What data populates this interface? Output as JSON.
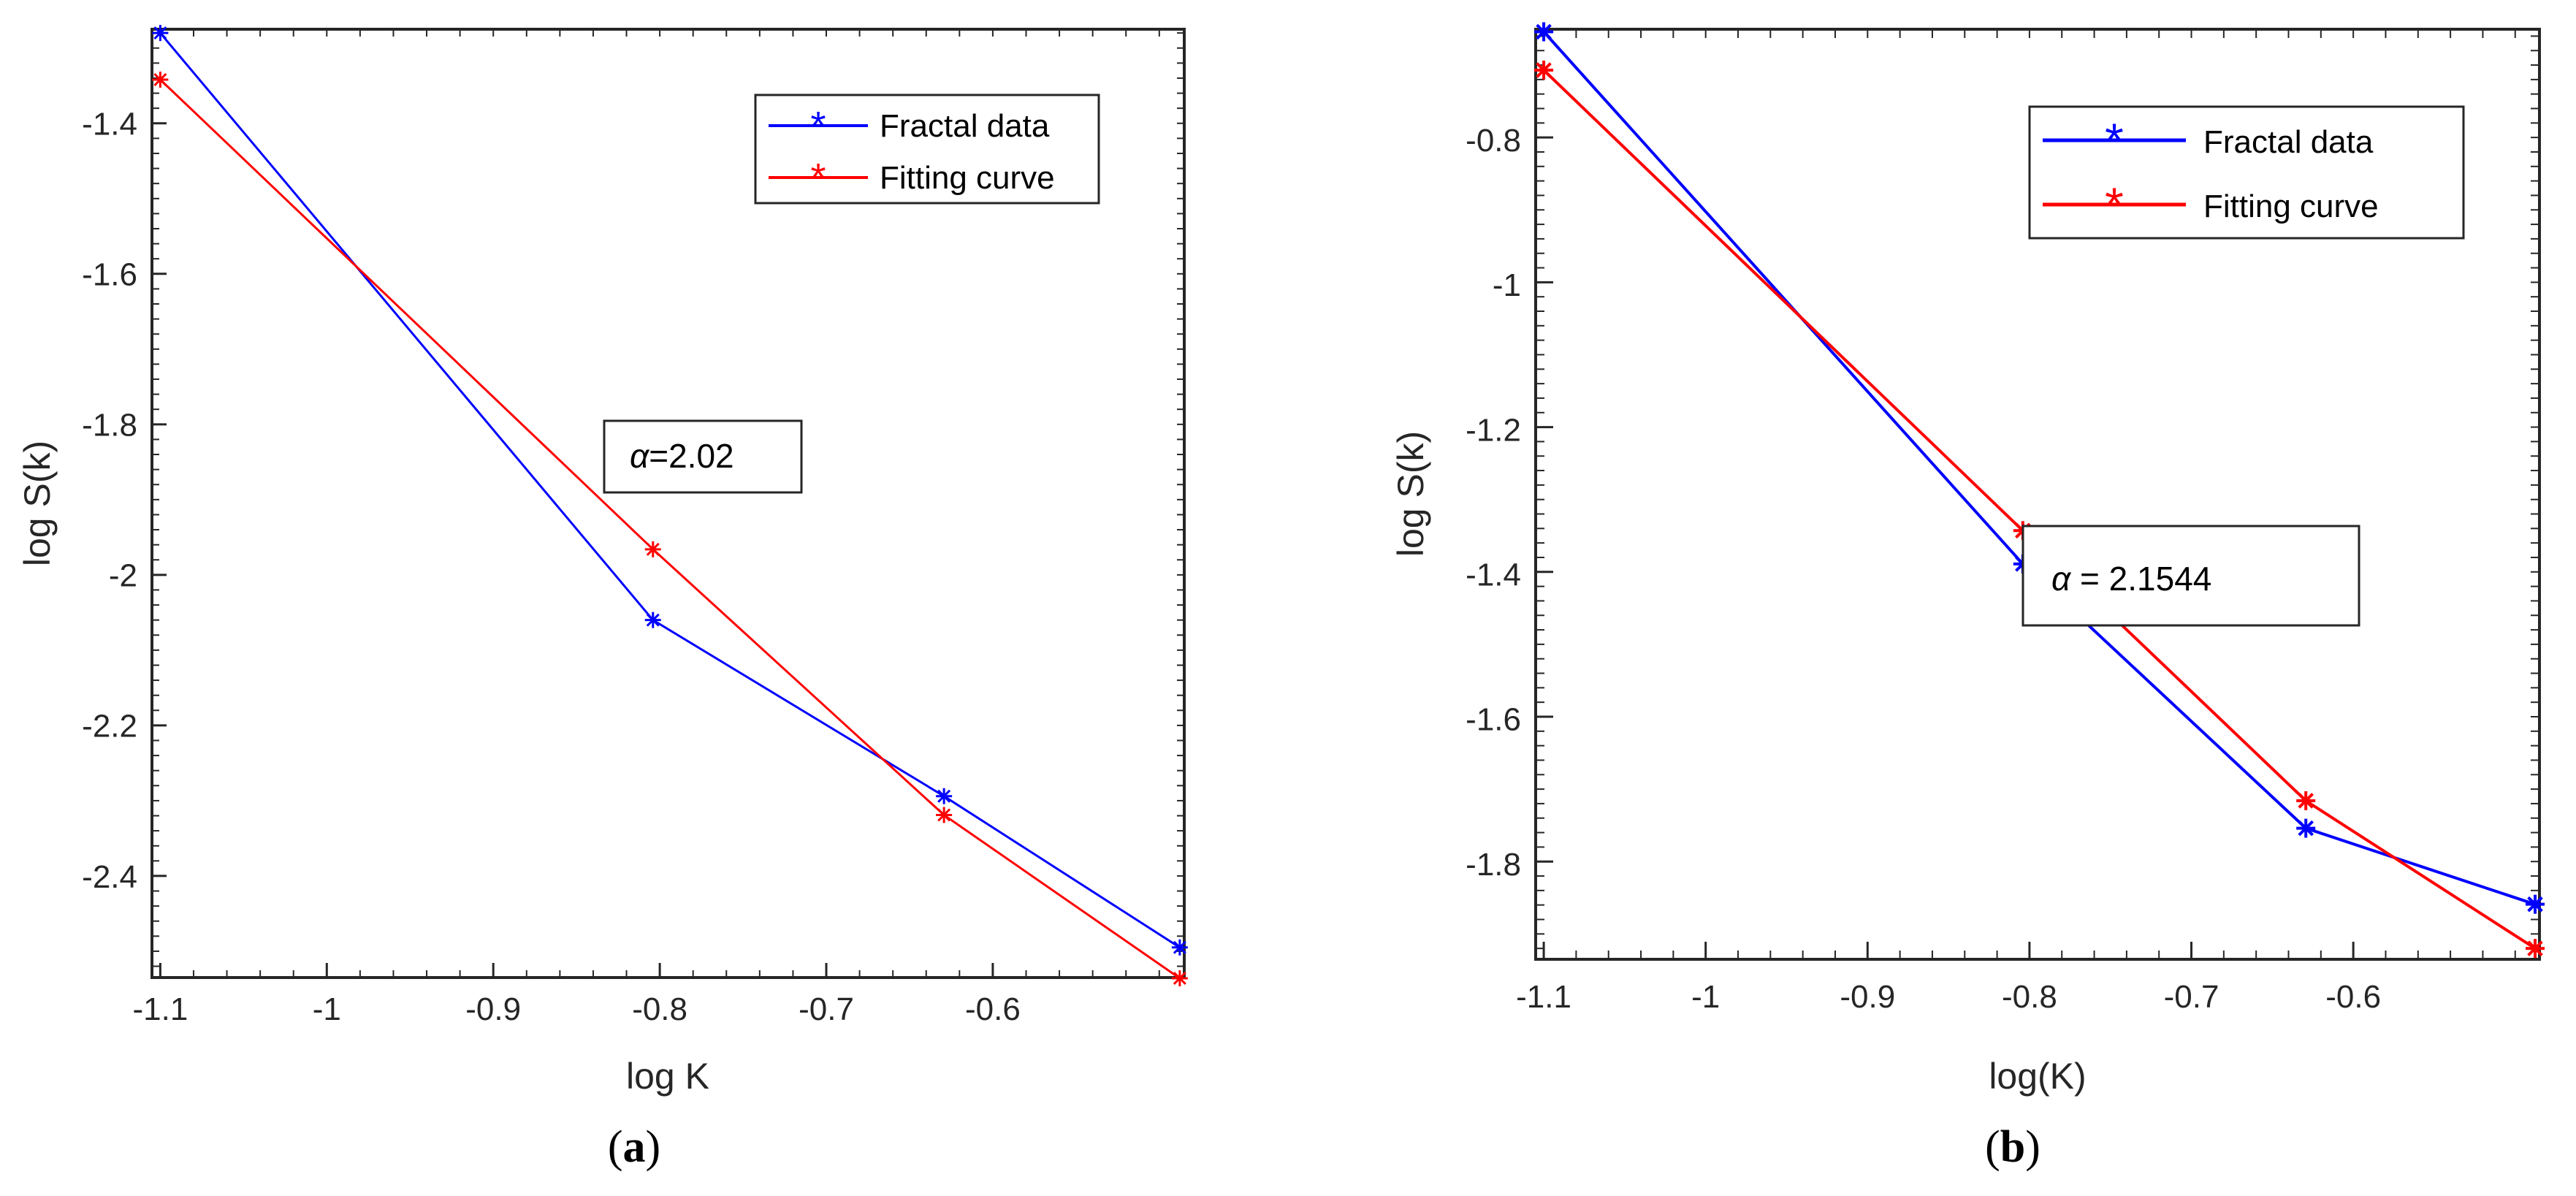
{
  "chart_data": [
    {
      "panel": "a",
      "type": "line",
      "panel_label": {
        "open": "(",
        "letter": "a",
        "close": ")"
      },
      "xlabel": "log K",
      "ylabel": "log S(k)",
      "xlim": [
        -1.105,
        -0.485
      ],
      "ylim": [
        -2.535,
        -1.275
      ],
      "xticks": [
        -1.1,
        -1.0,
        -0.9,
        -0.8,
        -0.7,
        -0.6
      ],
      "xtick_labels": [
        "-1.1",
        "-1",
        "-0.9",
        "-0.8",
        "-0.7",
        "-0.6"
      ],
      "yticks": [
        -1.4,
        -1.6,
        -1.8,
        -2.0,
        -2.2,
        -2.4
      ],
      "ytick_labels": [
        "-1.4",
        "-1.6",
        "-1.8",
        "-2",
        "-2.2",
        "-2.4"
      ],
      "x": [
        -1.1,
        -0.8041,
        -0.6293,
        -0.4877
      ],
      "series": [
        {
          "name": "Fractal data",
          "color": "#0000ff",
          "values": [
            -1.28,
            -2.06,
            -2.294,
            -2.495
          ]
        },
        {
          "name": "Fitting curve",
          "color": "#ff0000",
          "values": [
            -1.342,
            -1.966,
            -2.319,
            -2.536
          ]
        }
      ],
      "legend_location": "top-right",
      "annotation": "=2.02",
      "annotation_symbol": "α"
    },
    {
      "panel": "b",
      "type": "line",
      "panel_label": {
        "open": "(",
        "letter": "b",
        "close": ")"
      },
      "xlabel": "log(K)",
      "ylabel": "log S(k)",
      "xlim": [
        -1.105,
        -0.485
      ],
      "ylim": [
        -1.935,
        -0.6505
      ],
      "xticks": [
        -1.1,
        -1.0,
        -0.9,
        -0.8,
        -0.7,
        -0.6
      ],
      "xtick_labels": [
        "-1.1",
        "-1",
        "-0.9",
        "-0.8",
        "-0.7",
        "-0.6"
      ],
      "yticks": [
        -0.8,
        -1.0,
        -1.2,
        -1.4,
        -1.6,
        -1.8
      ],
      "ytick_labels": [
        "-0.8",
        "-1",
        "-1.2",
        "-1.4",
        "-1.6",
        "-1.8"
      ],
      "x": [
        -1.1,
        -0.8041,
        -0.6293,
        -0.4877
      ],
      "series": [
        {
          "name": "Fractal data",
          "color": "#0000ff",
          "values": [
            -0.654,
            -1.389,
            -1.754,
            -1.859
          ]
        },
        {
          "name": "Fitting curve",
          "color": "#ff0000",
          "values": [
            -0.707,
            -1.343,
            -1.716,
            -1.92
          ]
        }
      ],
      "legend_location": "top-right",
      "annotation": " = 2.1544",
      "annotation_symbol": "α"
    }
  ]
}
